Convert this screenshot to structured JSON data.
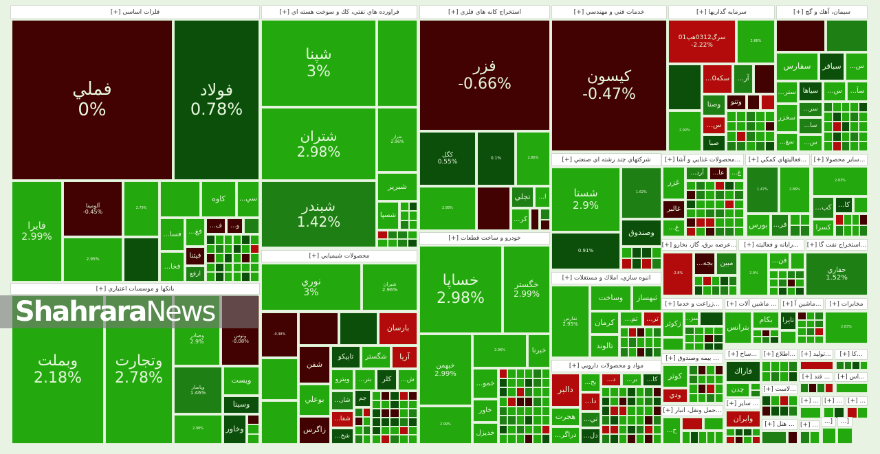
{
  "palette": {
    "dr": "#420202",
    "r": "#b30b0b",
    "dg": "#0c4f0b",
    "mg": "#1e7f14",
    "g": "#23a80e"
  },
  "watermark": {
    "brand_bold": "Shahrara",
    "brand_light": "News"
  },
  "sectors": [
    {
      "title": "فلزات اساسي [+]",
      "tiles": [
        {
          "label": "فملي",
          "pct": "0%",
          "c": "dr"
        },
        {
          "label": "فولاد",
          "pct": "0.78%",
          "c": "dg"
        },
        {
          "label": "فايرا",
          "pct": "2.99%",
          "c": "g"
        },
        {
          "label": "آلومينا",
          "pct": "-0.45%",
          "c": "dr"
        },
        {
          "label": "",
          "pct": "2.79%",
          "c": "g"
        },
        {
          "label": "",
          "pct": "2.95%",
          "c": "g"
        },
        {
          "label": "كاوه",
          "pct": "",
          "c": "g"
        },
        {
          "label": "...سي",
          "pct": "",
          "c": "g"
        },
        {
          "label": "...فسا",
          "pct": "",
          "c": "g"
        },
        {
          "label": "...فغ",
          "pct": "",
          "c": "g"
        },
        {
          "label": "...ف",
          "pct": "",
          "c": "dr"
        },
        {
          "label": "...و",
          "pct": "",
          "c": "dr"
        },
        {
          "label": "...فخا",
          "pct": "",
          "c": "g"
        },
        {
          "label": "فيتنا",
          "pct": "",
          "c": "dr"
        },
        {
          "label": "ارفع",
          "pct": "",
          "c": "mg"
        }
      ]
    },
    {
      "title": "بانكها و موسسات اعتباري [+]",
      "tiles": [
        {
          "label": "وبملت",
          "pct": "2.18%",
          "c": "g"
        },
        {
          "label": "وتجارت",
          "pct": "2.78%",
          "c": "g"
        },
        {
          "label": "وصادر",
          "pct": "2.9%",
          "c": "g"
        },
        {
          "label": "وتوس",
          "pct": "-0.08%",
          "c": "dr"
        },
        {
          "label": "وپاسار",
          "pct": "1.46%",
          "c": "mg"
        },
        {
          "label": "ويست",
          "pct": "",
          "c": "g"
        },
        {
          "label": "وسيتا",
          "pct": "",
          "c": "dg"
        },
        {
          "label": "",
          "pct": "2.98%",
          "c": "g"
        },
        {
          "label": "وخاور",
          "pct": "",
          "c": "dg"
        }
      ]
    },
    {
      "title": "فراورده هاي نفتي، كك و سوخت هسته اي [+]",
      "tiles": [
        {
          "label": "شپنا",
          "pct": "3%",
          "c": "g"
        },
        {
          "label": "شتران",
          "pct": "2.98%",
          "c": "g"
        },
        {
          "label": "شبندر",
          "pct": "1.42%",
          "c": "mg"
        },
        {
          "label": "شراز",
          "pct": "2.96%",
          "c": "g"
        },
        {
          "label": "شبريز",
          "pct": "",
          "c": "g"
        },
        {
          "label": "شسپا",
          "pct": "",
          "c": "g"
        }
      ]
    },
    {
      "title": "محصولات شيميايي [+]",
      "tiles": [
        {
          "label": "نوري",
          "pct": "3%",
          "c": "g"
        },
        {
          "label": "شيران",
          "pct": "2.96%",
          "c": "g"
        },
        {
          "label": "",
          "pct": "-0.38%",
          "c": "dr"
        },
        {
          "label": "بارسان",
          "pct": "",
          "c": "r"
        },
        {
          "label": "شفن",
          "pct": "",
          "c": "dr"
        },
        {
          "label": "بوعلي",
          "pct": "",
          "c": "g"
        },
        {
          "label": "زاگرس",
          "pct": "",
          "c": "dr"
        },
        {
          "label": "تاپيكو",
          "pct": "",
          "c": "dg"
        },
        {
          "label": "شگستر",
          "pct": "",
          "c": "g"
        },
        {
          "label": "آريا",
          "pct": "",
          "c": "r"
        },
        {
          "label": "ويترو",
          "pct": "",
          "c": "g"
        },
        {
          "label": "...بتر",
          "pct": "",
          "c": "g"
        },
        {
          "label": "كلر",
          "pct": "",
          "c": "dg"
        },
        {
          "label": "...ش",
          "pct": "",
          "c": "g"
        },
        {
          "label": "...شار",
          "pct": "",
          "c": "mg"
        },
        {
          "label": "جم",
          "pct": "",
          "c": "dg"
        },
        {
          "label": "...شفا",
          "pct": "",
          "c": "r"
        },
        {
          "label": "...شخ",
          "pct": "",
          "c": "dg"
        }
      ]
    },
    {
      "title": "استخراج كانه هاي فلزي [+]",
      "tiles": [
        {
          "label": "فزر",
          "pct": "-0.66%",
          "c": "dr"
        },
        {
          "label": "كگل",
          "pct": "0.55%",
          "c": "dg"
        },
        {
          "label": "",
          "pct": "0.1%",
          "c": "dg"
        },
        {
          "label": "",
          "pct": "2.86%",
          "c": "g"
        },
        {
          "label": "",
          "pct": "2.88%",
          "c": "g"
        },
        {
          "label": "تجلي",
          "pct": "",
          "c": "mg"
        },
        {
          "label": "...ا",
          "pct": "",
          "c": "g"
        },
        {
          "label": "...كر",
          "pct": "",
          "c": "g"
        }
      ]
    },
    {
      "title": "خودرو و ساخت قطعات [+]",
      "tiles": [
        {
          "label": "خساپا",
          "pct": "2.98%",
          "c": "g"
        },
        {
          "label": "خگستر",
          "pct": "2.99%",
          "c": "g"
        },
        {
          "label": "خبهمن",
          "pct": "2.99%",
          "c": "g"
        },
        {
          "label": "",
          "pct": "2.99%",
          "c": "g"
        },
        {
          "label": "",
          "pct": "2.96%",
          "c": "g"
        },
        {
          "label": "خبرنا",
          "pct": "",
          "c": "g"
        },
        {
          "label": "...خمو",
          "pct": "",
          "c": "g"
        },
        {
          "label": "خاور",
          "pct": "",
          "c": "g"
        },
        {
          "label": "خديزل",
          "pct": "",
          "c": "g"
        }
      ]
    },
    {
      "title": "خدمات فني و مهندسي [+]",
      "tiles": [
        {
          "label": "كيسون",
          "pct": "-0.47%",
          "c": "dr"
        }
      ]
    },
    {
      "title": "شركتهاي چند رشته اي صنعتي [+]",
      "tiles": [
        {
          "label": "شستا",
          "pct": "2.9%",
          "c": "g"
        },
        {
          "label": "",
          "pct": "1.62%",
          "c": "mg"
        },
        {
          "label": "وصندوق",
          "pct": "",
          "c": "dg"
        },
        {
          "label": "",
          "pct": "0.91%",
          "c": "dg"
        }
      ]
    },
    {
      "title": "انبوه سازي، املاك و مستغلات [+]",
      "tiles": [
        {
          "label": "تفارس",
          "pct": "2.95%",
          "c": "g"
        },
        {
          "label": "وساخت",
          "pct": "",
          "c": "g"
        },
        {
          "label": "ثبهساز",
          "pct": "",
          "c": "g"
        },
        {
          "label": "كرمان",
          "pct": "",
          "c": "g"
        },
        {
          "label": "...تم",
          "pct": "",
          "c": "g"
        },
        {
          "label": "...تر",
          "pct": "",
          "c": "r"
        },
        {
          "label": "تالوند",
          "pct": "",
          "c": "g"
        }
      ]
    },
    {
      "title": "مواد و محصولات دارويي [+]",
      "tiles": [
        {
          "label": "دالبر",
          "pct": "",
          "c": "r"
        },
        {
          "label": "هجرت",
          "pct": "",
          "c": "g"
        },
        {
          "label": "...دراگر",
          "pct": "",
          "c": "g"
        },
        {
          "label": "...بخ",
          "pct": "",
          "c": "g"
        },
        {
          "label": "...دا",
          "pct": "",
          "c": "r"
        },
        {
          "label": "...تي",
          "pct": "",
          "c": "mg"
        },
        {
          "label": "...دل",
          "pct": "",
          "c": "dg"
        },
        {
          "label": "...د",
          "pct": "",
          "c": "r"
        },
        {
          "label": "...بر",
          "pct": "",
          "c": "g"
        },
        {
          "label": "...كا",
          "pct": "",
          "c": "dg"
        }
      ]
    },
    {
      "title": "سرمايه گذاريها [+]",
      "tiles": [
        {
          "label": "سرگ0312ه‍پ01",
          "pct": "-2.22%",
          "c": "r"
        },
        {
          "label": "",
          "pct": "2.86%",
          "c": "g"
        },
        {
          "label": "...سكه0",
          "pct": "",
          "c": "r"
        },
        {
          "label": "...آر",
          "pct": "",
          "c": "mg"
        },
        {
          "label": "وصنا",
          "pct": "",
          "c": "mg"
        },
        {
          "label": "وتنو",
          "pct": "",
          "c": "dr"
        },
        {
          "label": "",
          "pct": "2.92%",
          "c": "g"
        },
        {
          "label": "...س",
          "pct": "",
          "c": "r"
        },
        {
          "label": "صبا",
          "pct": "",
          "c": "dg"
        }
      ]
    },
    {
      "title": "سيمان، آهك و گچ [+]",
      "tiles": [
        {
          "label": "سفارس",
          "pct": "",
          "c": "g"
        },
        {
          "label": "سباقر",
          "pct": "",
          "c": "dg"
        },
        {
          "label": "...س",
          "pct": "",
          "c": "g"
        },
        {
          "label": "...ستر",
          "pct": "",
          "c": "g"
        },
        {
          "label": "سياها",
          "pct": "",
          "c": "dg"
        },
        {
          "label": "...س",
          "pct": "",
          "c": "g"
        },
        {
          "label": "...سآ",
          "pct": "",
          "c": "g"
        },
        {
          "label": "سخزر",
          "pct": "",
          "c": "g"
        },
        {
          "label": "...سر",
          "pct": "",
          "c": "mg"
        },
        {
          "label": "...سا",
          "pct": "",
          "c": "mg"
        },
        {
          "label": "...سغ",
          "pct": "",
          "c": "g"
        },
        {
          "label": "...س",
          "pct": "",
          "c": "g"
        }
      ]
    },
    {
      "title": "...محصولات غذايي و آشا [+]",
      "tiles": [
        {
          "label": "غزر",
          "pct": "",
          "c": "g"
        },
        {
          "label": "غالبر",
          "pct": "",
          "c": "dr"
        },
        {
          "label": "...غ",
          "pct": "",
          "c": "g"
        },
        {
          "label": "...آرد",
          "pct": "",
          "c": "mg"
        },
        {
          "label": "...عا",
          "pct": "",
          "c": "dr"
        },
        {
          "label": "...غ",
          "pct": "",
          "c": "g"
        }
      ]
    },
    {
      "title": "...فعاليتهاي كمكي [+]",
      "tiles": [
        {
          "label": "",
          "pct": "1.47%",
          "c": "mg"
        },
        {
          "label": "",
          "pct": "2.86%",
          "c": "g"
        },
        {
          "label": "بورس",
          "pct": "",
          "c": "g"
        },
        {
          "label": "...فر",
          "pct": "",
          "c": "mg"
        }
      ]
    },
    {
      "title": "...ساير محصولا [+]",
      "tiles": [
        {
          "label": "",
          "pct": "2.83%",
          "c": "g"
        },
        {
          "label": "...كب",
          "pct": "",
          "c": "mg"
        },
        {
          "label": "...كا",
          "pct": "",
          "c": "dg"
        },
        {
          "label": "كسرا",
          "pct": "",
          "c": "g"
        }
      ]
    },
    {
      "title": "...عرضه برق، گاز، بخارو [+]",
      "tiles": [
        {
          "label": "",
          "pct": "-2.8%",
          "c": "r"
        },
        {
          "label": "...بجه",
          "pct": "",
          "c": "dr"
        },
        {
          "label": "مبين",
          "pct": "",
          "c": "mg"
        }
      ]
    },
    {
      "title": "...رايانه و فعاليته [+]",
      "tiles": [
        {
          "label": "",
          "pct": "2.9%",
          "c": "g"
        },
        {
          "label": "...فن",
          "pct": "",
          "c": "g"
        }
      ]
    },
    {
      "title": "...استخراج نفت گا [+]",
      "tiles": [
        {
          "label": "حفاري",
          "pct": "1.52%",
          "c": "mg"
        }
      ]
    },
    {
      "title": "...زراعت و خدما [+]",
      "tiles": [
        {
          "label": "زكوثر",
          "pct": "",
          "c": "g"
        },
        {
          "label": "...سز",
          "pct": "",
          "c": "g"
        }
      ]
    },
    {
      "title": "... ماشين آلات [+]",
      "tiles": [
        {
          "label": "بترانس",
          "pct": "",
          "c": "g"
        },
        {
          "label": "بكام",
          "pct": "",
          "c": "g"
        }
      ]
    },
    {
      "title": "...ماشين آ [+]",
      "tiles": [
        {
          "label": "تايرا",
          "pct": "",
          "c": "dg"
        }
      ]
    },
    {
      "title": "مخابرات [+]",
      "tiles": [
        {
          "label": "",
          "pct": "2.83%",
          "c": "g"
        }
      ]
    },
    {
      "title": "... بيمه وصندوق [+]",
      "tiles": [
        {
          "label": "كوثر",
          "pct": "",
          "c": "g"
        },
        {
          "label": "ودي",
          "pct": "",
          "c": "r"
        }
      ]
    },
    {
      "title": "...حمل ونقل، انبار [+]",
      "tiles": [
        {
          "label": "...ح",
          "pct": "",
          "c": "g"
        }
      ]
    },
    {
      "title": "...ساخ [+]",
      "tiles": [
        {
          "label": "فاراك",
          "pct": "",
          "c": "dg"
        },
        {
          "label": "چدن",
          "pct": "",
          "c": "g"
        }
      ]
    },
    {
      "title": "...اطلاع [+]",
      "tiles": []
    },
    {
      "title": "...توليد [+]",
      "tiles": []
    },
    {
      "title": "...كا [+]",
      "tiles": []
    },
    {
      "title": "... قند [+]",
      "tiles": []
    },
    {
      "title": "...اس [+]",
      "tiles": []
    },
    {
      "title": "...لاست [+]",
      "tiles": []
    },
    {
      "title": "... ساير [+]",
      "tiles": [
        {
          "label": "وايران",
          "pct": "",
          "c": "r"
        }
      ]
    },
    {
      "title": "... هتل [+]",
      "tiles": []
    },
    {
      "title": "... [+]",
      "tiles": []
    },
    {
      "title": "... [+]",
      "tiles": []
    },
    {
      "title": "... [+]",
      "tiles": []
    },
    {
      "title": "... [+]",
      "tiles": []
    },
    {
      "title": "[...",
      "tiles": []
    },
    {
      "title": "[...",
      "tiles": []
    }
  ]
}
